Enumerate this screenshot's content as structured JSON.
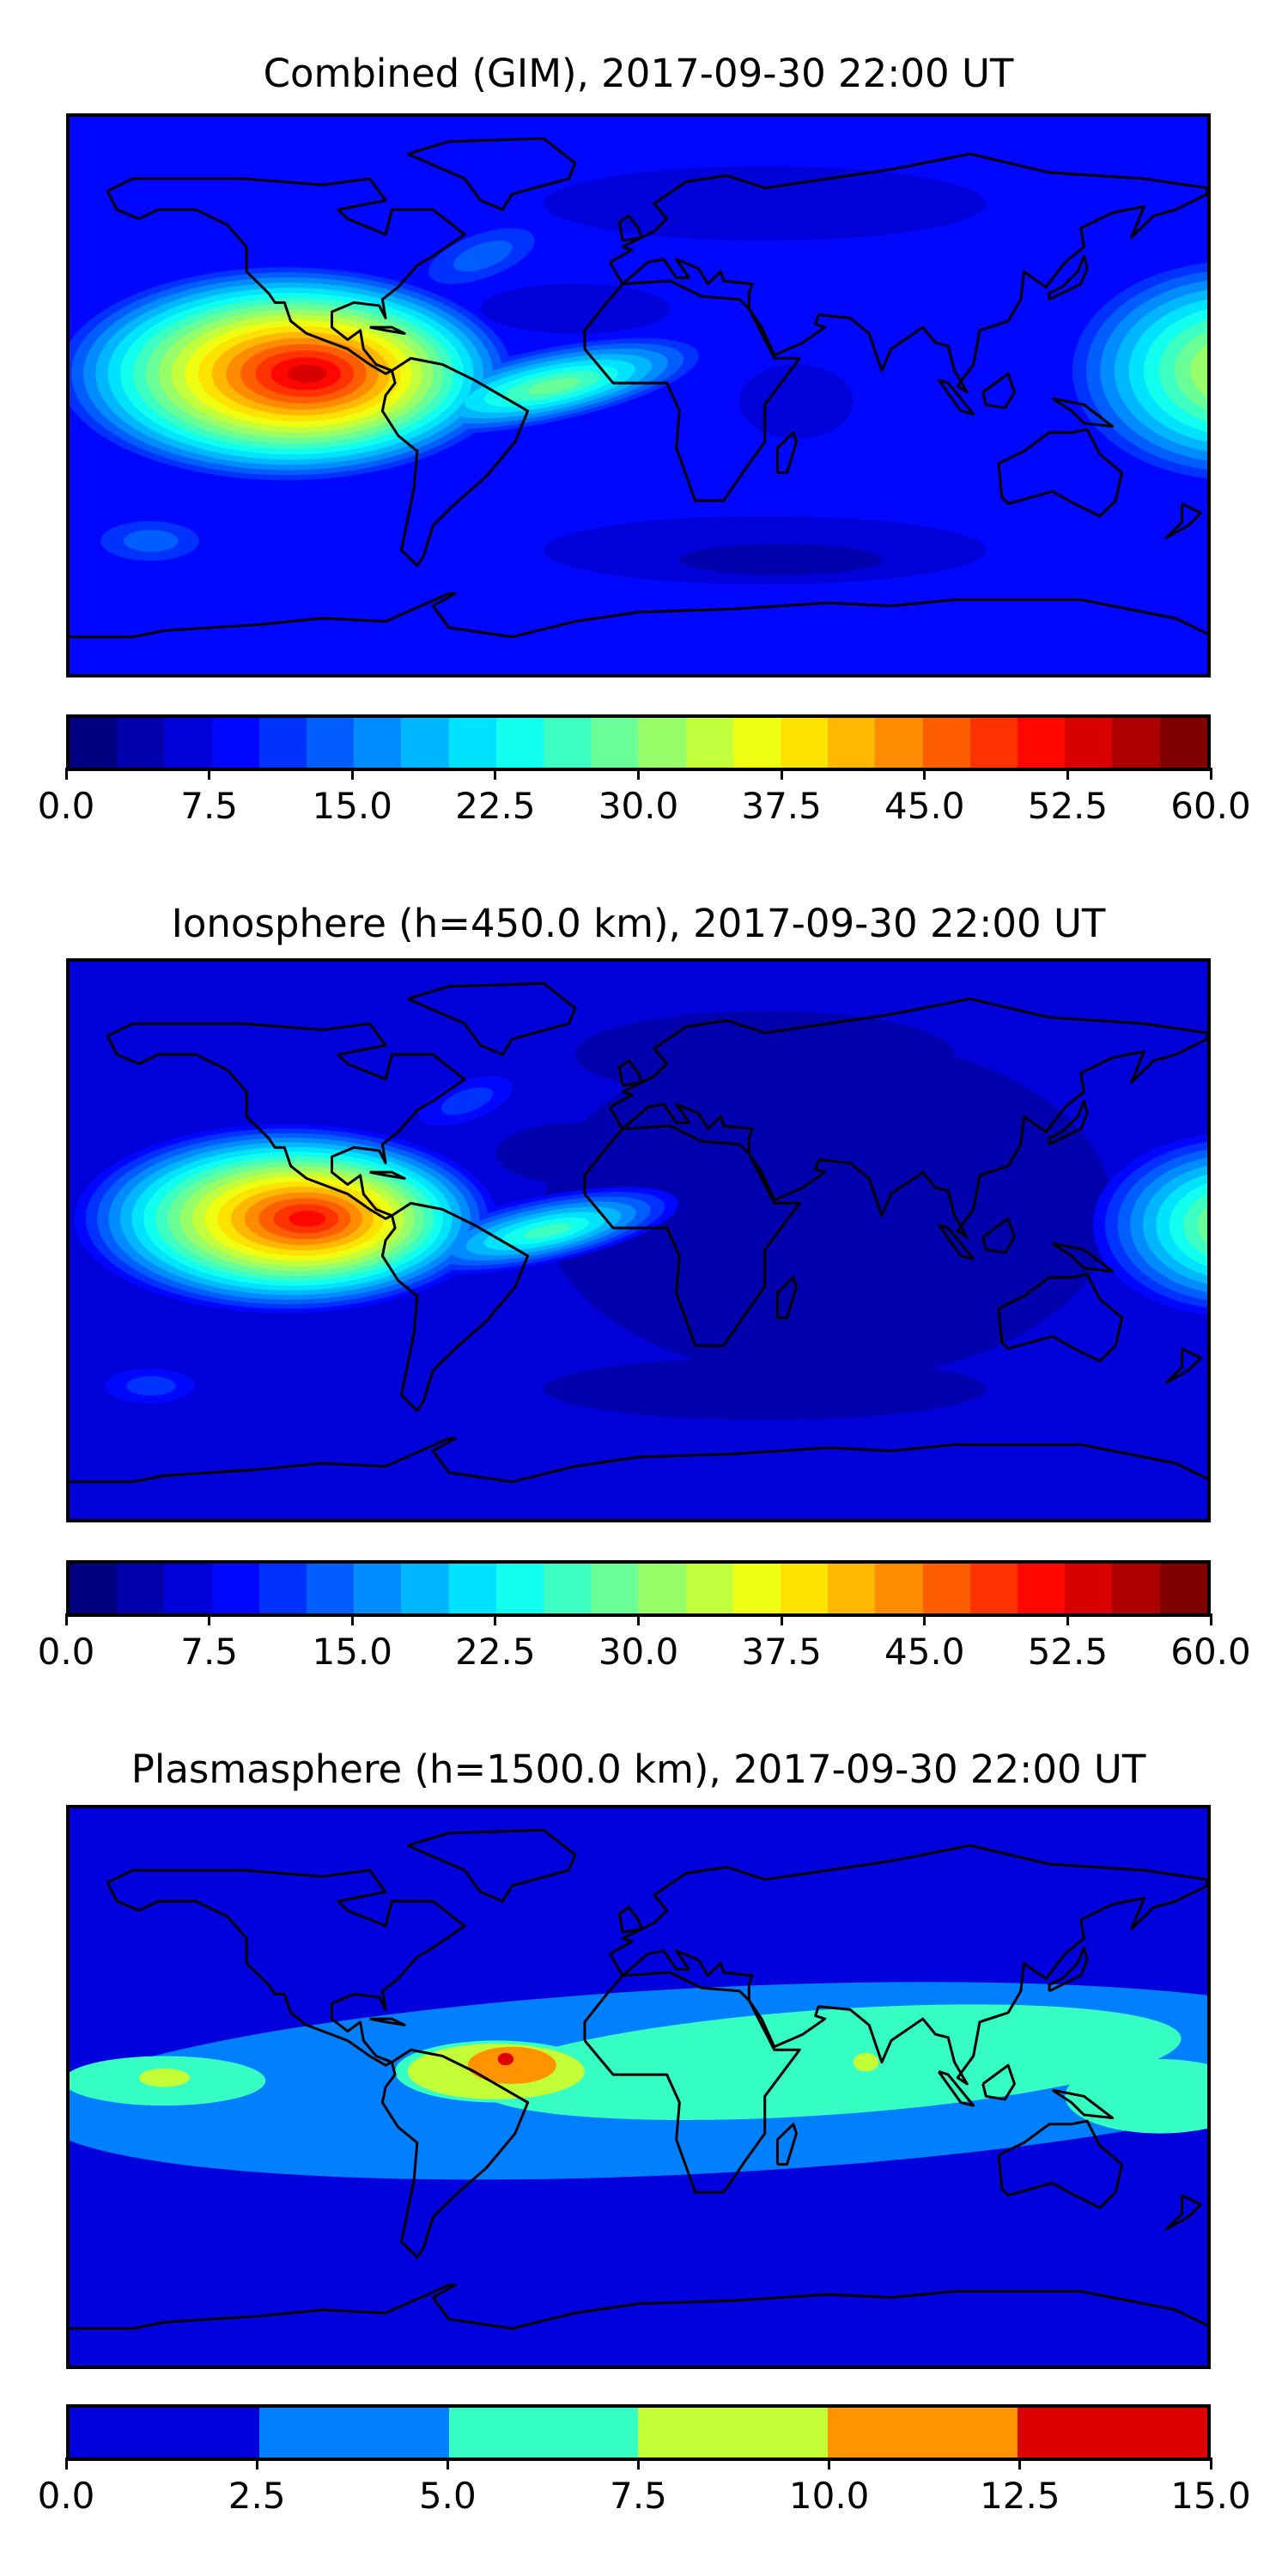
{
  "panels": [
    {
      "title": "Combined (GIM), 2017-09-30 22:00 UT",
      "colorbar": {
        "levels_min": 0,
        "levels_max": 60,
        "step": 2.5,
        "cmap": "jet",
        "ticks": [
          "0.0",
          "7.5",
          "15.0",
          "22.5",
          "30.0",
          "37.5",
          "45.0",
          "52.5",
          "60.0"
        ]
      }
    },
    {
      "title": "Ionosphere  (h=450.0 km), 2017-09-30 22:00 UT",
      "colorbar": {
        "levels_min": 0,
        "levels_max": 60,
        "step": 2.5,
        "cmap": "jet",
        "ticks": [
          "0.0",
          "7.5",
          "15.0",
          "22.5",
          "30.0",
          "37.5",
          "45.0",
          "52.5",
          "60.0"
        ]
      }
    },
    {
      "title": "Plasmasphere (h=1500.0 km), 2017-09-30 22:00 UT",
      "colorbar": {
        "levels_min": 0,
        "levels_max": 15,
        "step": 2.5,
        "cmap": "jet",
        "colors": [
          "#0000dd",
          "#0080ff",
          "#36ffc3",
          "#c3ff36",
          "#ff9400",
          "#dd0000"
        ],
        "ticks": [
          "0.0",
          "2.5",
          "5.0",
          "7.5",
          "10.0",
          "12.5",
          "15.0"
        ]
      }
    }
  ],
  "chart_data": [
    {
      "type": "heatmap",
      "title": "Combined (GIM), 2017-09-30 22:00 UT",
      "colorbar_range": [
        0,
        60
      ],
      "colorbar_ticks": [
        0,
        7.5,
        15,
        22.5,
        30,
        37.5,
        45,
        52.5,
        60
      ],
      "features": [
        {
          "desc": "maximum",
          "lon": -110,
          "lat": 7,
          "value": 52.5
        },
        {
          "desc": "secondary",
          "lon": 180,
          "lat": 8,
          "value": 35
        }
      ]
    },
    {
      "type": "heatmap",
      "title": "Ionosphere  (h=450.0 km), 2017-09-30 22:00 UT",
      "colorbar_range": [
        0,
        60
      ],
      "colorbar_ticks": [
        0,
        7.5,
        15,
        22.5,
        30,
        37.5,
        45,
        52.5,
        60
      ],
      "features": [
        {
          "desc": "maximum",
          "lon": -110,
          "lat": 7,
          "value": 50
        },
        {
          "desc": "secondary",
          "lon": 180,
          "lat": 5,
          "value": 32.5
        }
      ]
    },
    {
      "type": "heatmap",
      "title": "Plasmasphere (h=1500.0 km), 2017-09-30 22:00 UT",
      "colorbar_range": [
        0,
        15
      ],
      "colorbar_ticks": [
        0,
        2.5,
        5,
        7.5,
        10,
        12.5,
        15
      ],
      "features": [
        {
          "desc": "maximum",
          "lon": -42,
          "lat": 9,
          "value": 12.5
        }
      ]
    }
  ]
}
